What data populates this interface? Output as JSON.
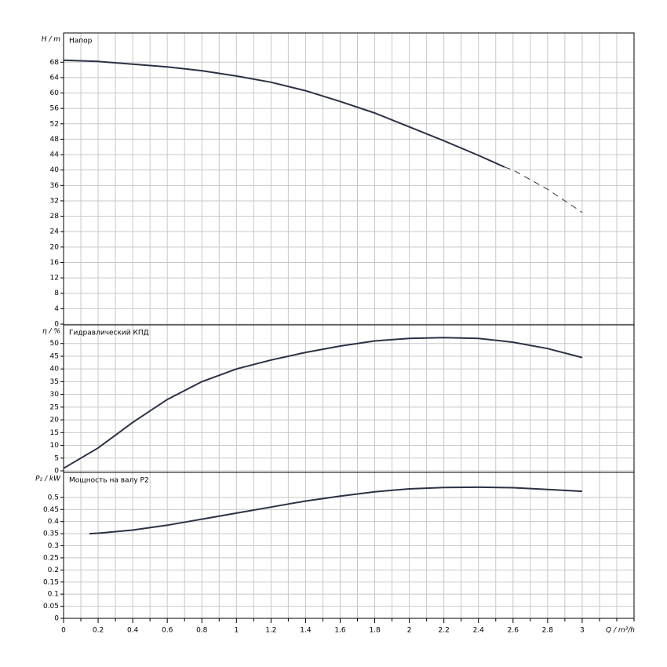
{
  "chart_data": [
    {
      "type": "line",
      "title": "Напор",
      "ylabel": "H / m",
      "ylim": [
        0,
        76
      ],
      "yticks": [
        0,
        4,
        8,
        12,
        16,
        20,
        24,
        28,
        32,
        36,
        40,
        44,
        48,
        52,
        56,
        60,
        64,
        68
      ],
      "grid": true,
      "series": [
        {
          "style": "solid",
          "color": "#2b3245",
          "x": [
            0,
            0.2,
            0.4,
            0.6,
            0.8,
            1.0,
            1.2,
            1.4,
            1.6,
            1.8,
            2.0,
            2.2,
            2.4,
            2.55
          ],
          "values": [
            68.5,
            68.2,
            67.5,
            66.8,
            65.8,
            64.4,
            62.8,
            60.6,
            57.8,
            54.8,
            51.2,
            47.6,
            43.8,
            40.8
          ]
        },
        {
          "style": "dashed",
          "color": "#2b3245",
          "x": [
            2.55,
            2.6,
            2.8,
            3.0
          ],
          "values": [
            40.8,
            40,
            35,
            29
          ]
        }
      ]
    },
    {
      "type": "line",
      "title": "Гидравлический КПД",
      "ylabel": "η / %",
      "ylim": [
        0,
        57
      ],
      "yticks": [
        0,
        5,
        10,
        15,
        20,
        25,
        30,
        35,
        40,
        45,
        50
      ],
      "grid": true,
      "series": [
        {
          "style": "solid",
          "color": "#2b3245",
          "x": [
            0,
            0.2,
            0.4,
            0.6,
            0.8,
            1.0,
            1.2,
            1.4,
            1.6,
            1.8,
            2.0,
            2.2,
            2.4,
            2.6,
            2.8,
            3.0
          ],
          "values": [
            1,
            9,
            19,
            28,
            35,
            40,
            43.5,
            46.5,
            49,
            51,
            52,
            52.3,
            52,
            50.5,
            48,
            44.5
          ]
        }
      ]
    },
    {
      "type": "line",
      "title": "Мощность на валу P2",
      "ylabel": "P₂ / kW",
      "ylim": [
        0,
        0.6
      ],
      "yticks": [
        0,
        0.05,
        0.1,
        0.15,
        0.2,
        0.25,
        0.3,
        0.35,
        0.4,
        0.45,
        0.5
      ],
      "grid": true,
      "xlabel": "Q / m³/h",
      "xlim": [
        0,
        3.3
      ],
      "xticks": [
        0,
        0.2,
        0.4,
        0.6,
        0.8,
        1,
        1.2,
        1.4,
        1.6,
        1.8,
        2,
        2.2,
        2.4,
        2.6,
        2.8,
        3
      ],
      "series": [
        {
          "style": "solid",
          "color": "#2b3245",
          "x": [
            0.15,
            0.2,
            0.4,
            0.6,
            0.8,
            1.0,
            1.2,
            1.4,
            1.6,
            1.8,
            2.0,
            2.2,
            2.4,
            2.6,
            2.8,
            3.0
          ],
          "values": [
            0.35,
            0.352,
            0.365,
            0.385,
            0.41,
            0.435,
            0.46,
            0.485,
            0.505,
            0.523,
            0.535,
            0.541,
            0.542,
            0.54,
            0.533,
            0.525
          ]
        }
      ]
    }
  ]
}
